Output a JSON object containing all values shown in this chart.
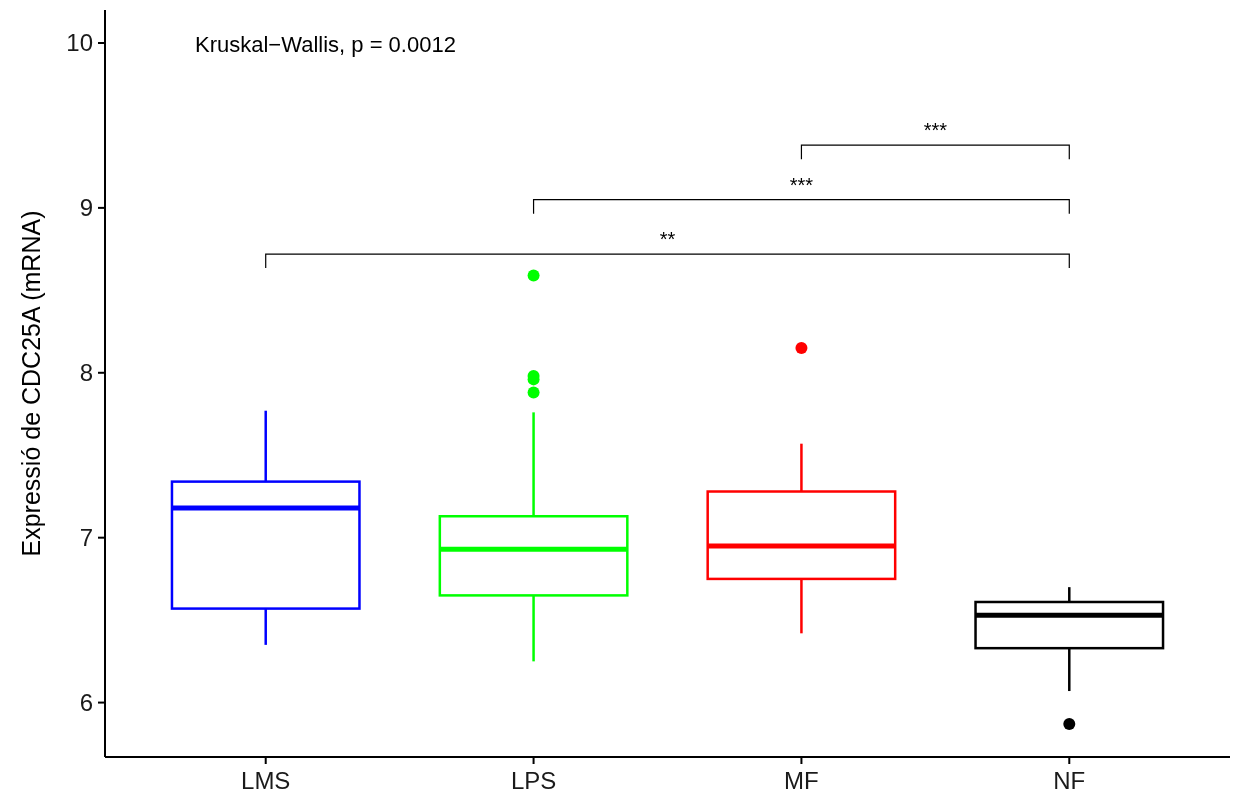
{
  "chart_data": {
    "type": "box",
    "ylabel": "Expressió de CDC25A (mRNA)",
    "categories": [
      "LMS",
      "LPS",
      "MF",
      "NF"
    ],
    "colors": [
      "#0000ff",
      "#00ff00",
      "#ff0000",
      "#000000"
    ],
    "boxes": [
      {
        "low": 6.35,
        "q1": 6.57,
        "median": 7.18,
        "q3": 7.34,
        "high": 7.77
      },
      {
        "low": 6.25,
        "q1": 6.65,
        "median": 6.93,
        "q3": 7.13,
        "high": 7.76,
        "outliers": [
          8.59,
          7.98,
          7.96,
          7.88
        ]
      },
      {
        "low": 6.42,
        "q1": 6.75,
        "median": 6.95,
        "q3": 7.28,
        "high": 7.57,
        "outliers": [
          8.15
        ]
      },
      {
        "low": 6.07,
        "q1": 6.33,
        "median": 6.53,
        "q3": 6.61,
        "high": 6.7,
        "outliers": [
          5.87
        ]
      }
    ],
    "ylim": [
      5.67,
      10.2
    ],
    "yticks": [
      6,
      7,
      8,
      9,
      10
    ],
    "grid": false,
    "annotations": [
      "Kruskal−Wallis, p = 0.0012",
      "***",
      "***",
      "**"
    ]
  }
}
